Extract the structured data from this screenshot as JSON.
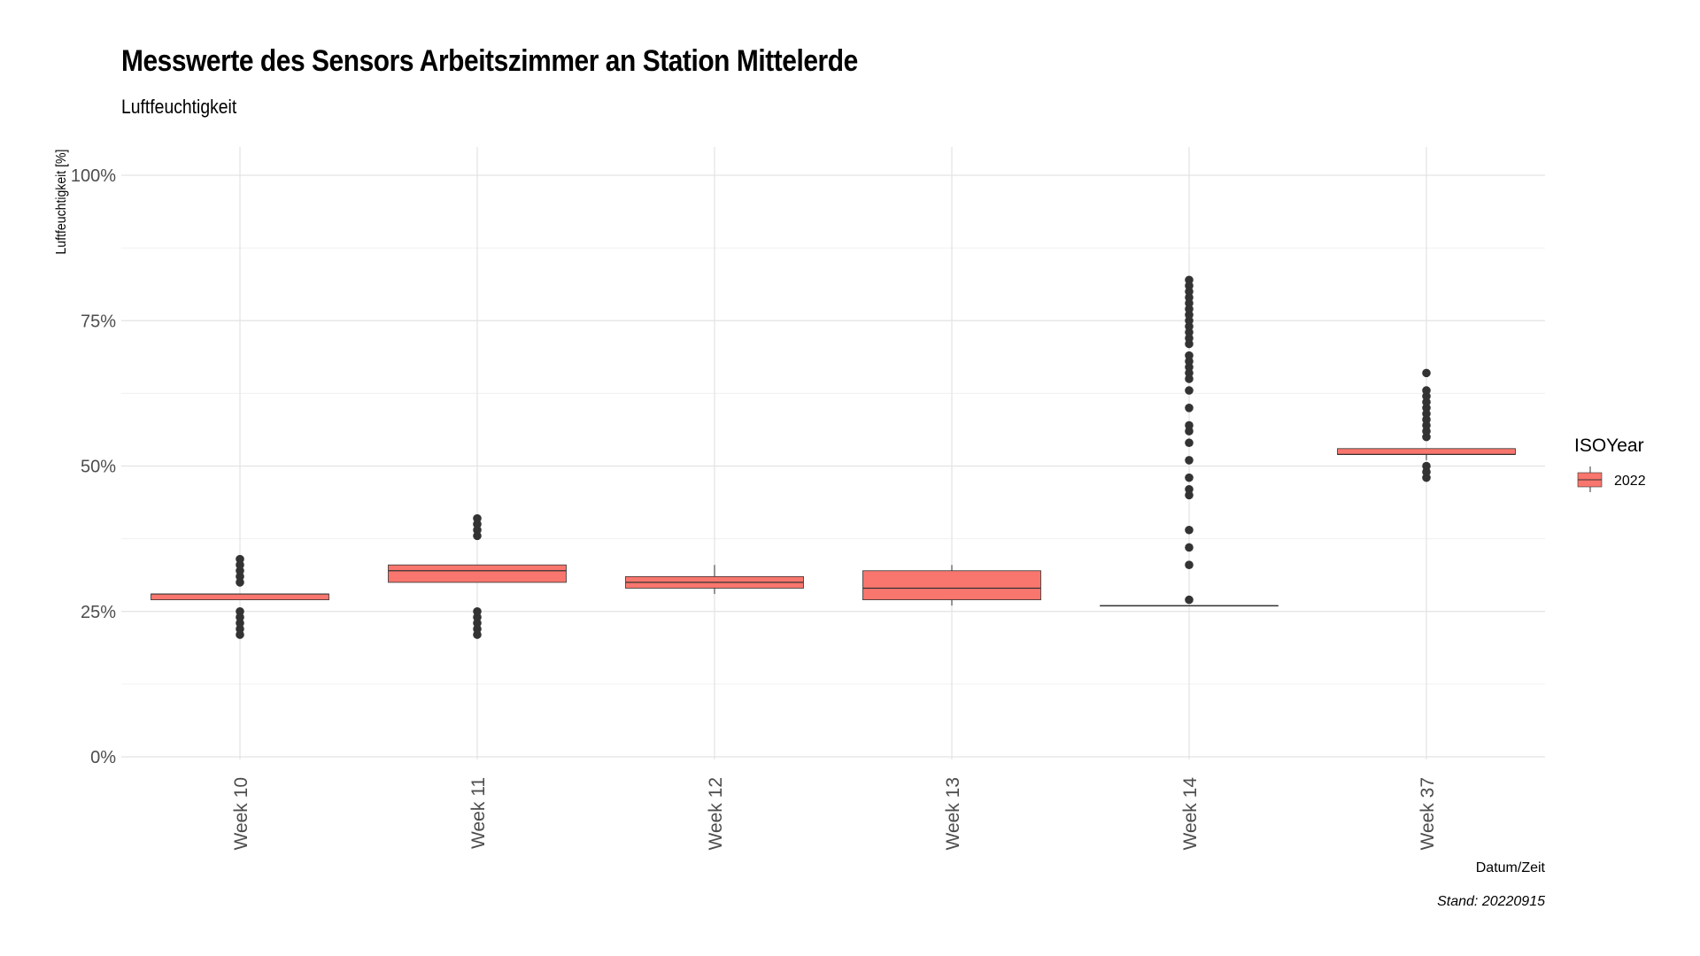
{
  "chart_data": {
    "type": "boxplot",
    "title": "Messwerte des Sensors Arbeitszimmer an Station Mittelerde",
    "subtitle": "Luftfeuchtigkeit",
    "xlabel": "Datum/Zeit",
    "ylabel": "Luftfeuchtigkeit [%]",
    "caption": "Stand: 20220915",
    "ylim": [
      0,
      100
    ],
    "y_ticks": [
      0,
      25,
      50,
      75,
      100
    ],
    "y_tick_labels": [
      "0%",
      "25%",
      "50%",
      "75%",
      "100%"
    ],
    "grid": true,
    "legend": {
      "title": "ISOYear",
      "position": "right",
      "entries": [
        {
          "label": "2022",
          "color": "#F8766D"
        }
      ]
    },
    "categories": [
      "Week 10",
      "Week 11",
      "Week 12",
      "Week 13",
      "Week 14",
      "Week 37"
    ],
    "boxes": [
      {
        "q1": 27,
        "median": 28,
        "q3": 28,
        "whisker_low": 27,
        "whisker_high": 28,
        "outliers": [
          21,
          22,
          23,
          24,
          25,
          30,
          31,
          32,
          33,
          34
        ]
      },
      {
        "q1": 30,
        "median": 32,
        "q3": 33,
        "whisker_low": 30,
        "whisker_high": 33,
        "outliers": [
          21,
          22,
          23,
          24,
          25,
          38,
          39,
          40,
          41
        ]
      },
      {
        "q1": 29,
        "median": 30,
        "q3": 31,
        "whisker_low": 28,
        "whisker_high": 33,
        "outliers": []
      },
      {
        "q1": 27,
        "median": 29,
        "q3": 32,
        "whisker_low": 26,
        "whisker_high": 33,
        "outliers": []
      },
      {
        "q1": 26,
        "median": 26,
        "q3": 26,
        "whisker_low": 26,
        "whisker_high": 26,
        "outliers": [
          27,
          33,
          36,
          39,
          45,
          46,
          48,
          51,
          54,
          56,
          57,
          60,
          63,
          65,
          66,
          67,
          68,
          69,
          71,
          72,
          73,
          74,
          75,
          76,
          77,
          78,
          79,
          80,
          81,
          82
        ]
      },
      {
        "q1": 52,
        "median": 52,
        "q3": 53,
        "whisker_low": 51,
        "whisker_high": 53,
        "outliers": [
          48,
          49,
          50,
          55,
          56,
          57,
          58,
          59,
          60,
          61,
          62,
          63,
          66
        ]
      }
    ],
    "colors": {
      "box_fill": "#F8766D",
      "box_line": "#333333",
      "outlier": "#333333",
      "grid_major": "#e3e3e3",
      "grid_minor": "#f0f0f0"
    }
  }
}
